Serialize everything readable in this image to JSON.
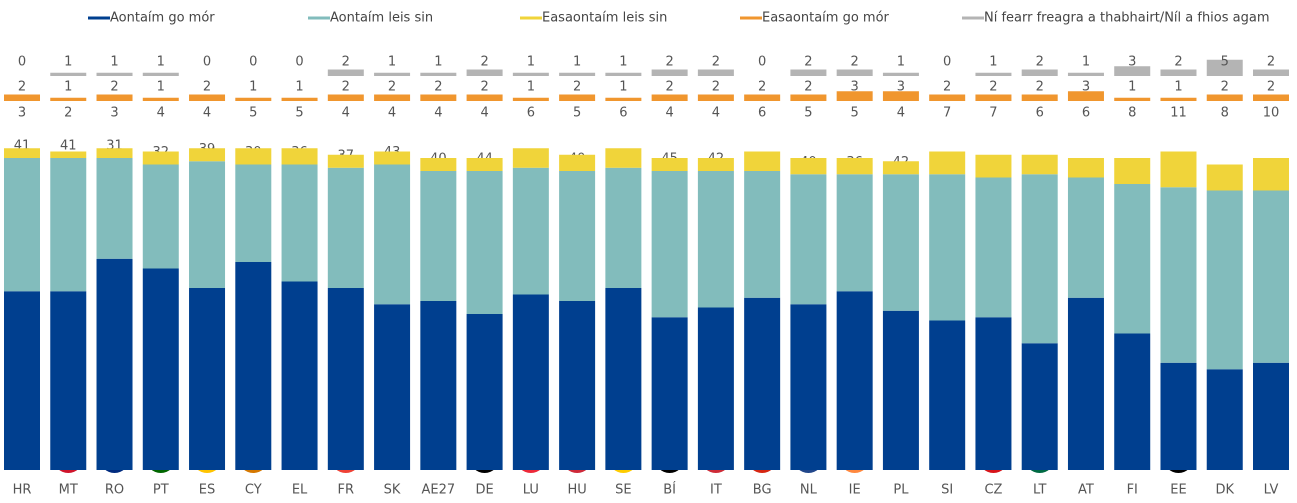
{
  "chart_data": {
    "type": "stacked_bar",
    "categories": [
      "HR",
      "MT",
      "RO",
      "PT",
      "ES",
      "CY",
      "EL",
      "FR",
      "SK",
      "AE27",
      "DE",
      "LU",
      "HU",
      "SE",
      "BÍ",
      "IT",
      "BG",
      "NL",
      "IE",
      "PL",
      "SI",
      "CZ",
      "LT",
      "AT",
      "FI",
      "EE",
      "DK",
      "LV"
    ],
    "series": [
      {
        "name": "Aontaím go mór",
        "color": "#003f8f",
        "values": [
          55,
          55,
          65,
          62,
          56,
          64,
          58,
          56,
          51,
          52,
          48,
          54,
          52,
          56,
          47,
          50,
          53,
          51,
          55,
          49,
          46,
          47,
          39,
          53,
          42,
          33,
          31,
          33
        ]
      },
      {
        "name": "Aontaím leis sin",
        "color": "#82bcbc",
        "values": [
          41,
          41,
          31,
          32,
          39,
          30,
          36,
          37,
          43,
          40,
          44,
          39,
          40,
          37,
          45,
          42,
          39,
          40,
          36,
          42,
          45,
          43,
          52,
          37,
          46,
          54,
          55,
          53
        ]
      },
      {
        "name": "Easaontaím leis sin",
        "color": "#f0d43a",
        "values": [
          3,
          2,
          3,
          4,
          4,
          5,
          5,
          4,
          4,
          4,
          4,
          6,
          5,
          6,
          4,
          4,
          6,
          5,
          5,
          4,
          7,
          7,
          6,
          6,
          8,
          11,
          8,
          10
        ]
      },
      {
        "name": "Easaontaím go mór",
        "color": "#f0962e",
        "values": [
          2,
          1,
          2,
          1,
          2,
          1,
          1,
          2,
          2,
          2,
          2,
          1,
          2,
          1,
          2,
          2,
          2,
          2,
          3,
          3,
          2,
          2,
          2,
          3,
          1,
          1,
          2,
          2
        ]
      },
      {
        "name": "Ní fearr freagra a thabhairt/Níl a fhios agam",
        "color": "#b4b4b4",
        "values": [
          0,
          1,
          1,
          1,
          0,
          0,
          0,
          2,
          1,
          1,
          2,
          1,
          1,
          1,
          2,
          2,
          0,
          2,
          2,
          1,
          0,
          1,
          2,
          1,
          3,
          2,
          5,
          2
        ]
      }
    ]
  }
}
